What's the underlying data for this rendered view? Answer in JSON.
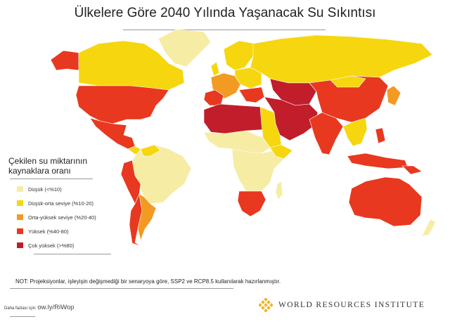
{
  "title": "Ülkelere Göre 2040 Yılında Yaşanacak Su Sıkıntısı",
  "legend": {
    "title_line1": "Çekilen su miktarının",
    "title_line2": "kaynaklara oranı",
    "items": [
      {
        "label": "Düşük (<%10)",
        "color": "#f6eca4"
      },
      {
        "label": "Düşük-orta seviye (%10-20)",
        "color": "#f6d60f"
      },
      {
        "label": "Orta-yüksek seviye (%20-40)",
        "color": "#f29a22"
      },
      {
        "label": "Yüksek (%40-80)",
        "color": "#e8381f"
      },
      {
        "label": "Çok yüksek (>%80)",
        "color": "#c11d2b"
      }
    ]
  },
  "note": "NOT: Projeksiyonlar, işleyişin değişmediği bir senaryoya göre, SSP2 ve RCP8.5 kullanılarak hazırlanmıştır.",
  "more_info": {
    "label": "Daha fazlası için:",
    "link": "ow.ly/RiWop"
  },
  "logo": {
    "text": "WORLD RESOURCES INSTITUTE",
    "color": "#f0b429"
  }
}
